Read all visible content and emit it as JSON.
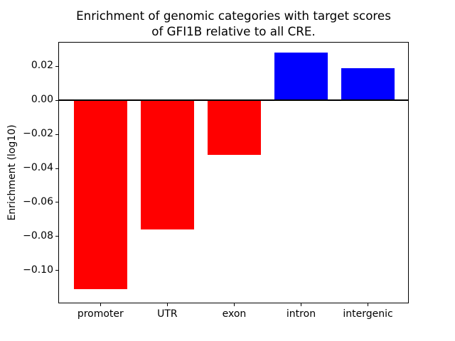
{
  "title": {
    "line1": "Enrichment of genomic categories with target scores",
    "line2": "of GFI1B relative to all CRE."
  },
  "chart_data": {
    "type": "bar",
    "title": "Enrichment of genomic categories with target scores of GFI1B relative to all CRE.",
    "categories": [
      "promoter",
      "UTR",
      "exon",
      "intron",
      "intergenic"
    ],
    "values": [
      -0.111,
      -0.076,
      -0.032,
      0.028,
      0.019
    ],
    "bar_colors": [
      "#ff0000",
      "#ff0000",
      "#ff0000",
      "#0000ff",
      "#0000ff"
    ],
    "colors": {
      "negative": "#ff0000",
      "positive": "#0000ff",
      "axis": "#000000",
      "background": "#ffffff"
    },
    "xlabel": "",
    "ylabel": "Enrichment (log10)",
    "ylim": [
      -0.119,
      0.034
    ],
    "xlim": [
      -0.62,
      4.6
    ],
    "bar_width": 0.8,
    "yticks": [
      0.02,
      0.0,
      -0.02,
      -0.04,
      -0.06,
      -0.08,
      -0.1
    ],
    "ytick_labels": [
      "0.02",
      "0.00",
      "−0.02",
      "−0.04",
      "−0.06",
      "−0.08",
      "−0.10"
    ],
    "zero_line": true,
    "grid": false,
    "legend": null
  }
}
